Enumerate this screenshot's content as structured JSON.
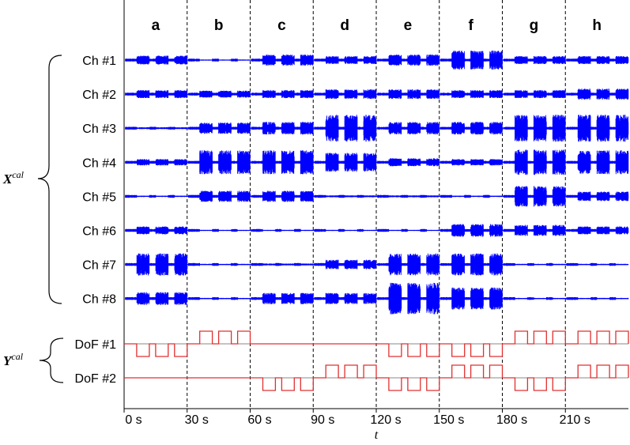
{
  "chart_data": {
    "type": "line",
    "xlim": [
      0,
      240
    ],
    "x_ticks": [
      0,
      30,
      60,
      90,
      120,
      150,
      180,
      210
    ],
    "x_tick_labels": [
      "0 s",
      "30 s",
      "60 s",
      "90 s",
      "120 s",
      "150 s",
      "180 s",
      "210 s"
    ],
    "xlabel": "t",
    "segments": [
      {
        "label": "a",
        "start": 0,
        "end": 30
      },
      {
        "label": "b",
        "start": 30,
        "end": 60
      },
      {
        "label": "c",
        "start": 60,
        "end": 90
      },
      {
        "label": "d",
        "start": 90,
        "end": 120
      },
      {
        "label": "e",
        "start": 120,
        "end": 150
      },
      {
        "label": "f",
        "start": 150,
        "end": 180
      },
      {
        "label": "g",
        "start": 180,
        "end": 210
      },
      {
        "label": "h",
        "start": 210,
        "end": 240
      }
    ],
    "burst_offsets": [
      9,
      18,
      27
    ],
    "burst_width": 6,
    "input_group": {
      "symbol": "X",
      "superscript": "cal"
    },
    "output_group": {
      "symbol": "Y",
      "superscript": "cal"
    },
    "emg_color": "#0000ff",
    "dof_color": "#e03030",
    "emg_channels": [
      {
        "name": "Ch #1",
        "amplitude": [
          0.28,
          0.03,
          0.35,
          0.25,
          0.35,
          0.6,
          0.25,
          0.25
        ]
      },
      {
        "name": "Ch #2",
        "amplitude": [
          0.25,
          0.22,
          0.25,
          0.3,
          0.3,
          0.25,
          0.25,
          0.35
        ]
      },
      {
        "name": "Ch #3",
        "amplitude": [
          0.06,
          0.35,
          0.4,
          0.85,
          0.4,
          0.4,
          0.85,
          0.85
        ]
      },
      {
        "name": "Ch #4",
        "amplitude": [
          0.2,
          0.75,
          0.75,
          0.6,
          0.25,
          0.2,
          0.8,
          0.75
        ]
      },
      {
        "name": "Ch #5",
        "amplitude": [
          0.04,
          0.35,
          0.35,
          0.06,
          0.06,
          0.04,
          0.65,
          0.3
        ]
      },
      {
        "name": "Ch #6",
        "amplitude": [
          0.25,
          0.03,
          0.03,
          0.03,
          0.03,
          0.4,
          0.35,
          0.25
        ]
      },
      {
        "name": "Ch #7",
        "amplitude": [
          0.7,
          0.04,
          0.06,
          0.3,
          0.7,
          0.7,
          0.04,
          0.04
        ]
      },
      {
        "name": "Ch #8",
        "amplitude": [
          0.4,
          0.04,
          0.35,
          0.35,
          1.0,
          0.7,
          0.04,
          0.04
        ]
      }
    ],
    "dof_channels": [
      {
        "name": "DoF #1",
        "direction": [
          -1,
          1,
          0,
          0,
          -1,
          -1,
          1,
          1
        ]
      },
      {
        "name": "DoF #2",
        "direction": [
          0,
          0,
          -1,
          1,
          -1,
          1,
          -1,
          1
        ]
      }
    ]
  }
}
